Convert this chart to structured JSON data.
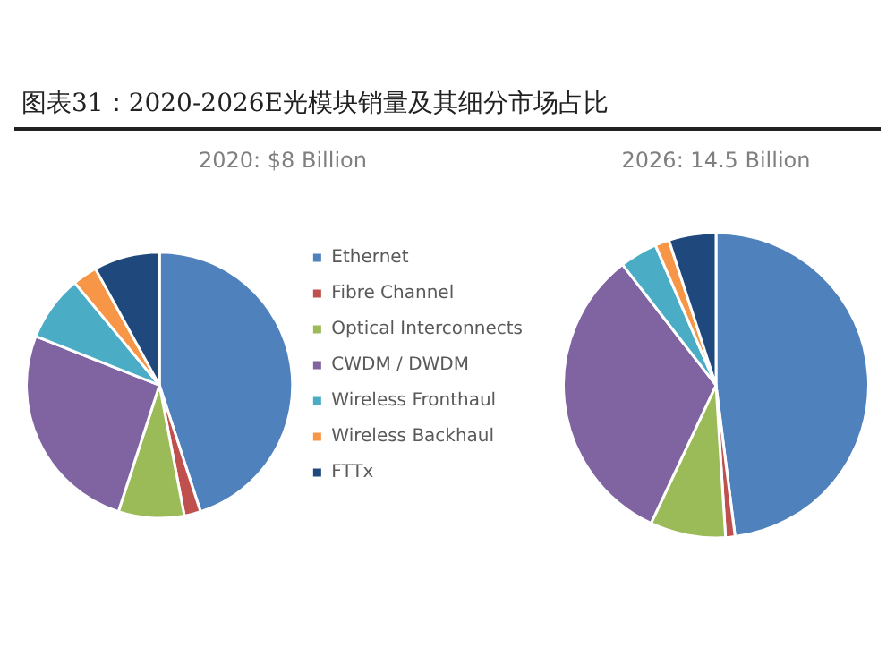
{
  "chart_data": [
    {
      "type": "pie",
      "title": "图表31：2020-2026E光模块销量及其细分市场占比",
      "subtitle": "2020: $8 Billion",
      "categories": [
        "Ethernet",
        "Fibre Channel",
        "Optical Interconnects",
        "CWDM / DWDM",
        "Wireless Fronthaul",
        "Wireless Backhaul",
        "FTTx"
      ],
      "values": [
        45,
        2,
        8,
        26,
        8,
        3,
        8
      ],
      "colors": [
        "#4f81bd",
        "#c0504d",
        "#9bbb59",
        "#8064a2",
        "#4bacc6",
        "#f79646",
        "#1f497d"
      ],
      "legend": "right"
    },
    {
      "type": "pie",
      "subtitle": "2026: 14.5 Billion",
      "categories": [
        null,
        null,
        null,
        null,
        null,
        null,
        null
      ],
      "values": [
        48,
        1,
        8,
        32.5,
        4,
        1.5,
        5
      ],
      "colors": [
        "#4f81bd",
        "#c0504d",
        "#9bbb59",
        "#8064a2",
        "#4bacc6",
        "#f79646",
        "#1f497d"
      ]
    }
  ]
}
